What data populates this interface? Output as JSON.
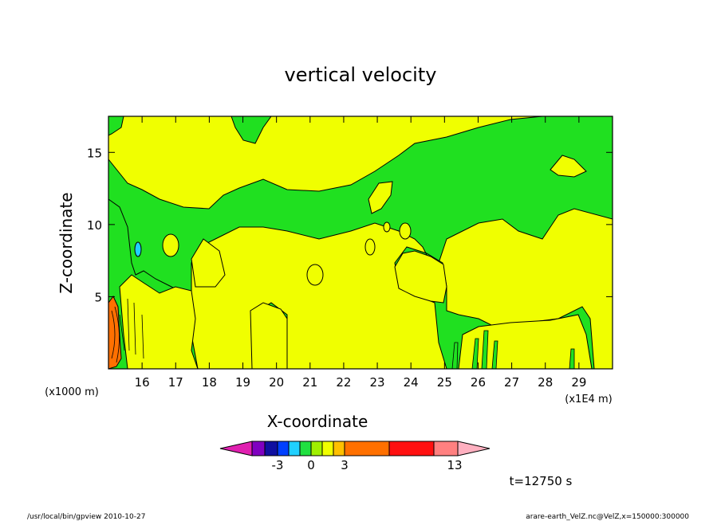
{
  "chart_data": {
    "type": "heatmap",
    "title": "vertical velocity",
    "xlabel": "X-coordinate",
    "ylabel": "Z-coordinate",
    "x_unit": "(x1E4 m)",
    "y_unit": "(x1000 m)",
    "x_ticks": [
      16,
      17,
      18,
      19,
      20,
      21,
      22,
      23,
      24,
      25,
      26,
      27,
      28,
      29
    ],
    "y_ticks": [
      5,
      10,
      15
    ],
    "xlim": [
      15,
      30
    ],
    "ylim": [
      0,
      17.5
    ],
    "colorbar": {
      "labels": [
        {
          "text": "-3",
          "value": -3
        },
        {
          "text": "0",
          "value": 0
        },
        {
          "text": "3",
          "value": 3
        },
        {
          "text": "13",
          "value": 13
        }
      ],
      "colors": [
        "#e020b0",
        "#8000c0",
        "#1010a0",
        "#0040ff",
        "#20d0ff",
        "#20e040",
        "#a0f000",
        "#f0ff00",
        "#ffc000",
        "#ff7000",
        "#ff1010",
        "#ff8080",
        "#ffb0c0"
      ]
    },
    "colors": {
      "zero_pos": "#f0ff00",
      "zero_neg": "#20e020",
      "pos_strong": "#ff7000",
      "neg_weak": "#20d0ff"
    },
    "time_label": "t=12750 s"
  },
  "footer": {
    "left": "/usr/local/bin/gpview  2010-10-27",
    "right": "arare-earth_VelZ.nc@VelZ,x=150000:300000"
  }
}
